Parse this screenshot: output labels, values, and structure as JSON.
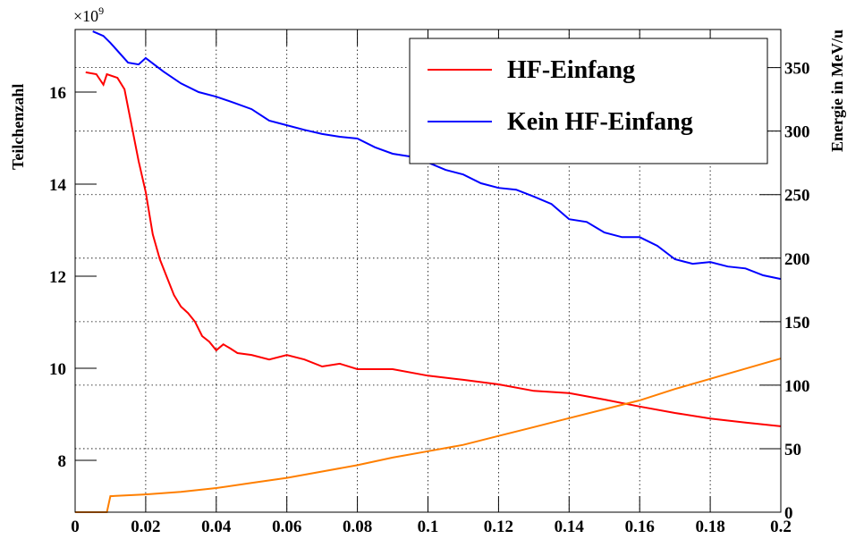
{
  "chart_data": {
    "type": "line",
    "y_label": "Teilchenzahl",
    "y2_label": "Energie in MeV/u",
    "y_multiplier": {
      "base": "×10",
      "exponent": "9"
    },
    "xlim": [
      0,
      0.2
    ],
    "xticks": [
      0,
      0.02,
      0.04,
      0.06,
      0.08,
      0.1,
      0.12,
      0.14,
      0.16,
      0.18,
      0.2
    ],
    "ylim": [
      6.874,
      17.36
    ],
    "yticks": [
      8,
      10,
      12,
      14,
      16
    ],
    "y2lim": [
      0,
      380
    ],
    "y2ticks": [
      0,
      50,
      100,
      150,
      200,
      250,
      300,
      350
    ],
    "grid": true,
    "legend": "top-right",
    "y2_color": "#ff7f00",
    "series": [
      {
        "name": "HF-Einfang",
        "color": "#ff0000",
        "x": [
          0.003,
          0.006,
          0.008,
          0.009,
          0.012,
          0.014,
          0.016,
          0.018,
          0.02,
          0.022,
          0.024,
          0.026,
          0.028,
          0.03,
          0.032,
          0.034,
          0.036,
          0.038,
          0.04,
          0.042,
          0.044,
          0.046,
          0.05,
          0.055,
          0.06,
          0.065,
          0.07,
          0.075,
          0.08,
          0.09,
          0.1,
          0.11,
          0.12,
          0.13,
          0.14,
          0.15,
          0.16,
          0.17,
          0.18,
          0.19,
          0.2
        ],
        "values": [
          16.43,
          16.39,
          16.16,
          16.39,
          16.31,
          16.06,
          15.28,
          14.5,
          13.83,
          12.91,
          12.37,
          11.98,
          11.59,
          11.34,
          11.2,
          11.01,
          10.7,
          10.58,
          10.39,
          10.52,
          10.43,
          10.33,
          10.29,
          10.19,
          10.29,
          10.19,
          10.04,
          10.1,
          9.98,
          9.98,
          9.84,
          9.75,
          9.65,
          9.51,
          9.46,
          9.32,
          9.17,
          9.03,
          8.91,
          8.82,
          8.74
        ]
      },
      {
        "name": "Kein HF-Einfang",
        "color": "#0000ff",
        "x": [
          0.005,
          0.008,
          0.01,
          0.015,
          0.018,
          0.02,
          0.025,
          0.03,
          0.035,
          0.04,
          0.045,
          0.05,
          0.055,
          0.06,
          0.065,
          0.07,
          0.075,
          0.08,
          0.085,
          0.09,
          0.095,
          0.1,
          0.105,
          0.11,
          0.115,
          0.12,
          0.125,
          0.13,
          0.135,
          0.14,
          0.145,
          0.15,
          0.155,
          0.16,
          0.165,
          0.17,
          0.175,
          0.18,
          0.185,
          0.19,
          0.195,
          0.2
        ],
        "values": [
          17.32,
          17.22,
          17.07,
          16.64,
          16.6,
          16.74,
          16.45,
          16.19,
          16.0,
          15.9,
          15.77,
          15.63,
          15.38,
          15.28,
          15.18,
          15.09,
          15.03,
          14.99,
          14.8,
          14.66,
          14.6,
          14.47,
          14.31,
          14.21,
          14.02,
          13.92,
          13.88,
          13.73,
          13.57,
          13.24,
          13.18,
          12.95,
          12.85,
          12.85,
          12.66,
          12.37,
          12.27,
          12.31,
          12.21,
          12.17,
          12.02,
          11.94
        ]
      },
      {
        "name": "Energie",
        "color": "#ff7f00",
        "axis": "y2",
        "x": [
          0,
          0.009,
          0.01,
          0.02,
          0.03,
          0.04,
          0.05,
          0.06,
          0.07,
          0.08,
          0.09,
          0.1,
          0.11,
          0.12,
          0.13,
          0.14,
          0.15,
          0.16,
          0.17,
          0.18,
          0.19,
          0.2
        ],
        "values": [
          0,
          0,
          12.6,
          14,
          16,
          19,
          23,
          27,
          32,
          37,
          43,
          48,
          53,
          60,
          67,
          74,
          81,
          88,
          97,
          105,
          113,
          121
        ]
      }
    ]
  }
}
